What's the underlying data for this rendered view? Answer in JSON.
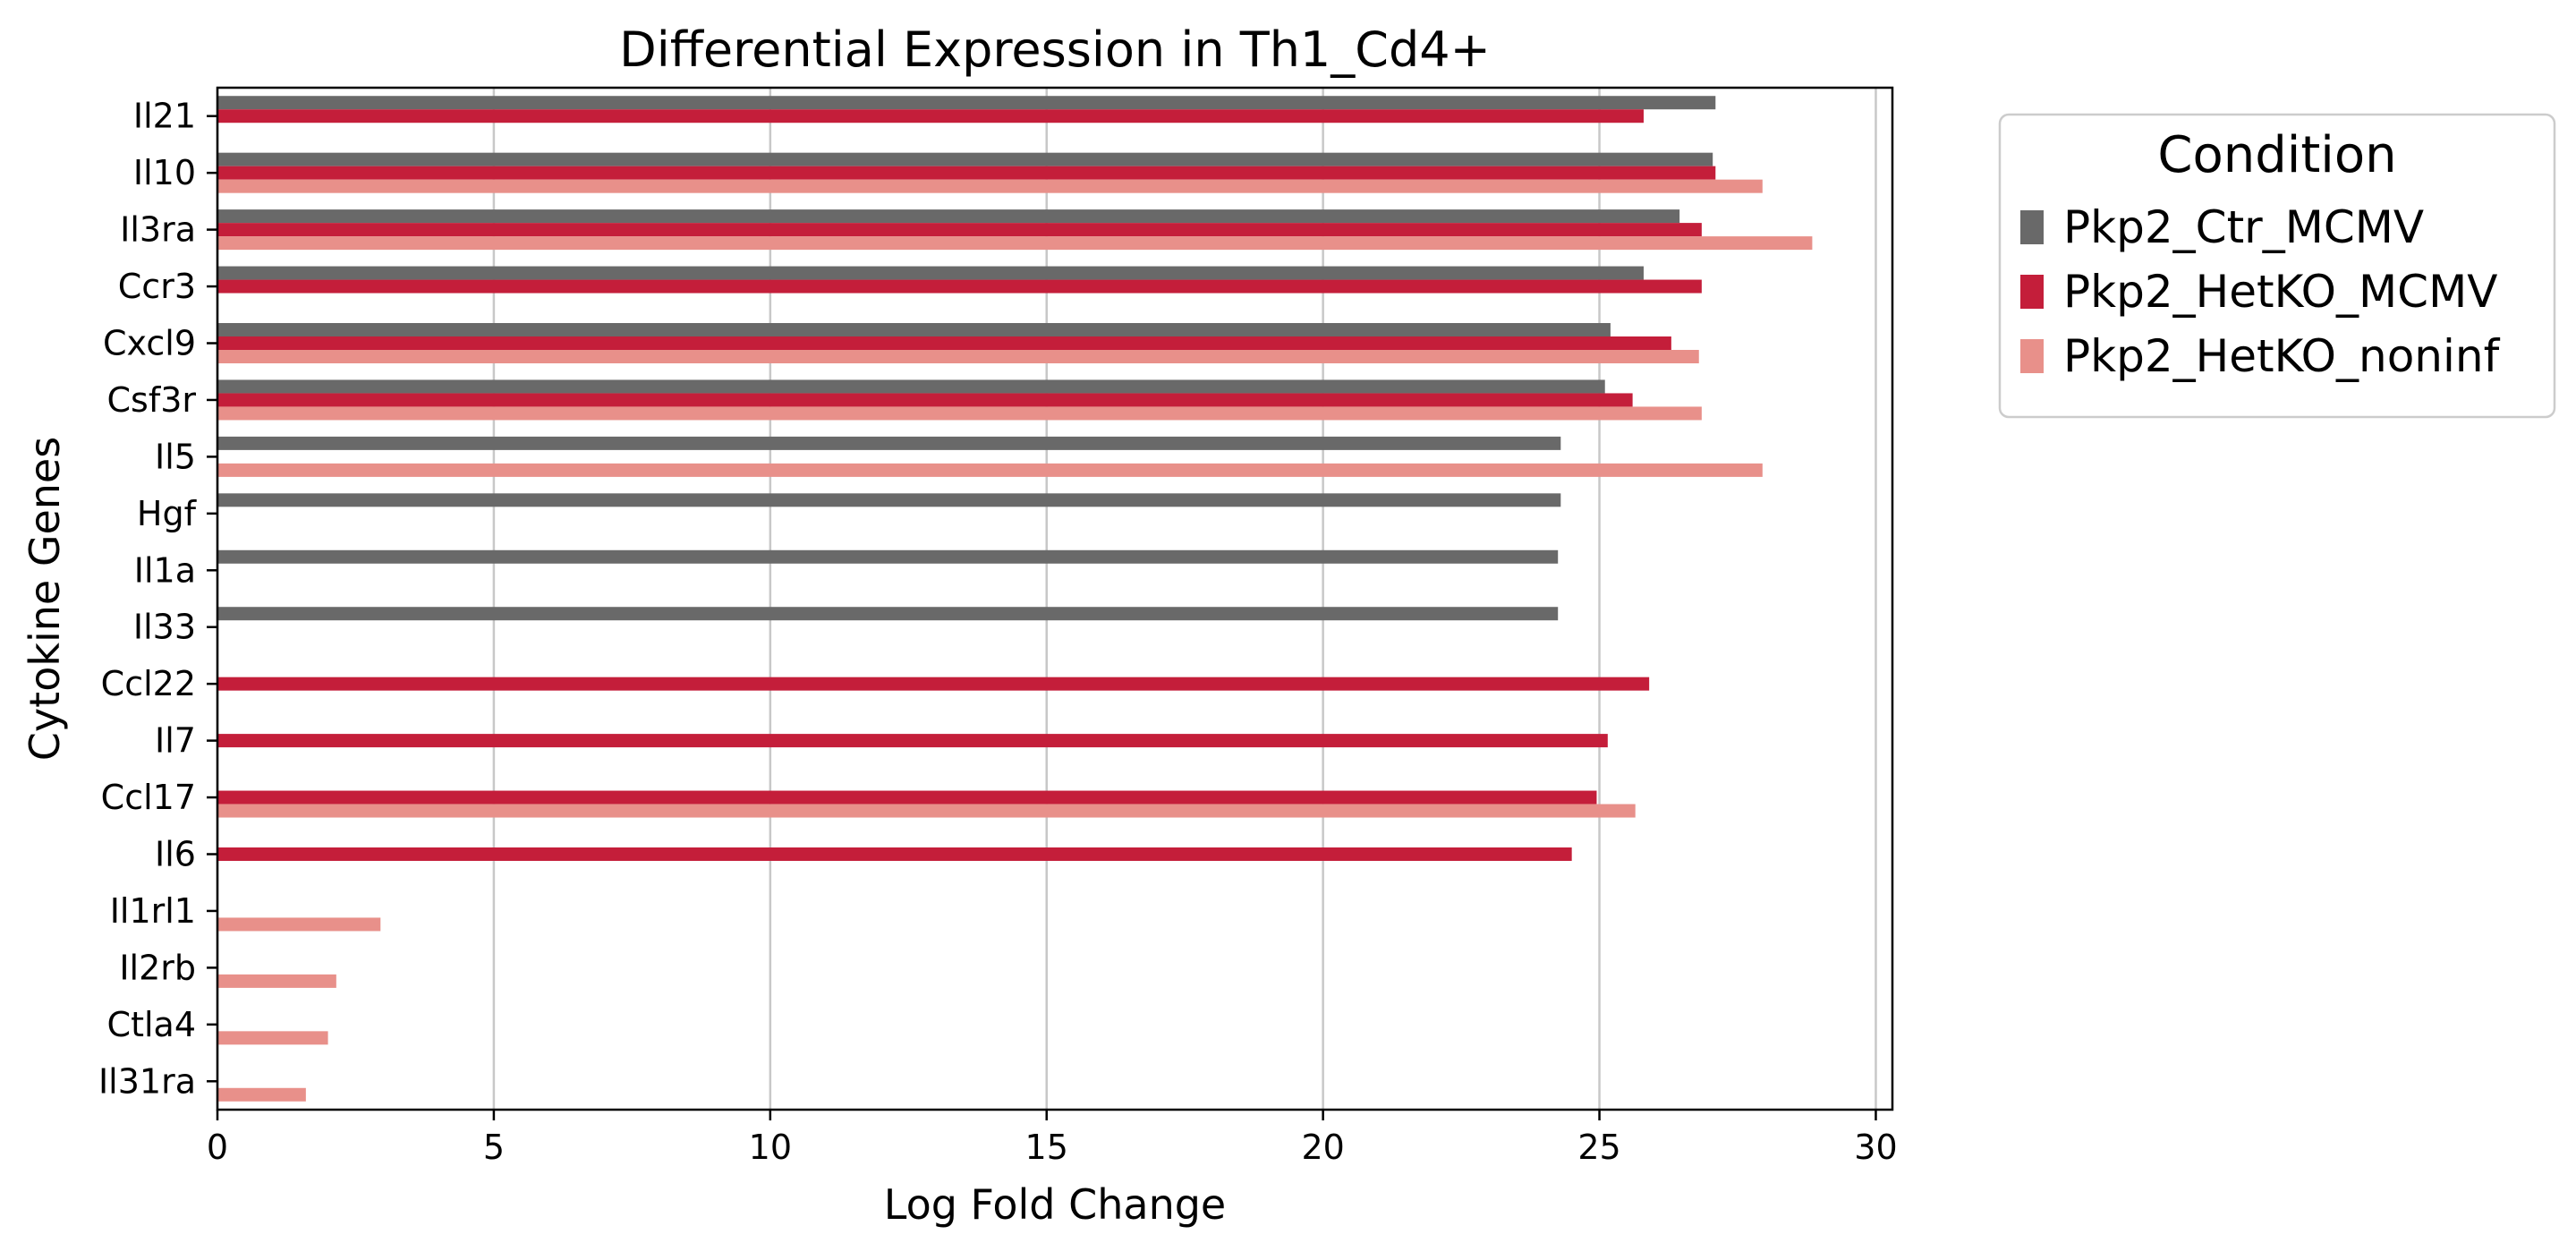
{
  "chart_data": {
    "type": "bar",
    "orientation": "horizontal",
    "title": "Differential Expression in Th1_Cd4+",
    "xlabel": "Log Fold Change",
    "ylabel": "Cytokine Genes",
    "xlim": [
      0,
      30.3
    ],
    "xticks": [
      "0",
      "5",
      "10",
      "15",
      "20",
      "25",
      "30"
    ],
    "grid": "vertical",
    "legend": {
      "title": "Condition",
      "placement": "outside-top-right"
    },
    "categories": [
      "Il21",
      "Il10",
      "Il3ra",
      "Ccr3",
      "Cxcl9",
      "Csf3r",
      "Il5",
      "Hgf",
      "Il1a",
      "Il33",
      "Ccl22",
      "Il7",
      "Ccl17",
      "Il6",
      "Il1rl1",
      "Il2rb",
      "Ctla4",
      "Il31ra"
    ],
    "series": [
      {
        "name": "Pkp2_Ctr_MCMV",
        "color": "#696969",
        "values": [
          27.1,
          27.05,
          26.45,
          25.8,
          25.2,
          25.1,
          24.3,
          24.3,
          24.25,
          24.25,
          null,
          null,
          null,
          null,
          null,
          null,
          null,
          null
        ]
      },
      {
        "name": "Pkp2_HetKO_MCMV",
        "color": "#c41e3a",
        "values": [
          25.8,
          27.1,
          26.85,
          26.85,
          26.3,
          25.6,
          null,
          null,
          null,
          null,
          25.9,
          25.15,
          24.95,
          24.5,
          null,
          null,
          null,
          null
        ]
      },
      {
        "name": "Pkp2_HetKO_noninf",
        "color": "#e8908a",
        "values": [
          null,
          27.95,
          28.85,
          null,
          26.8,
          26.85,
          27.95,
          null,
          null,
          null,
          null,
          null,
          25.65,
          null,
          2.95,
          2.15,
          2.0,
          1.6
        ]
      }
    ]
  }
}
